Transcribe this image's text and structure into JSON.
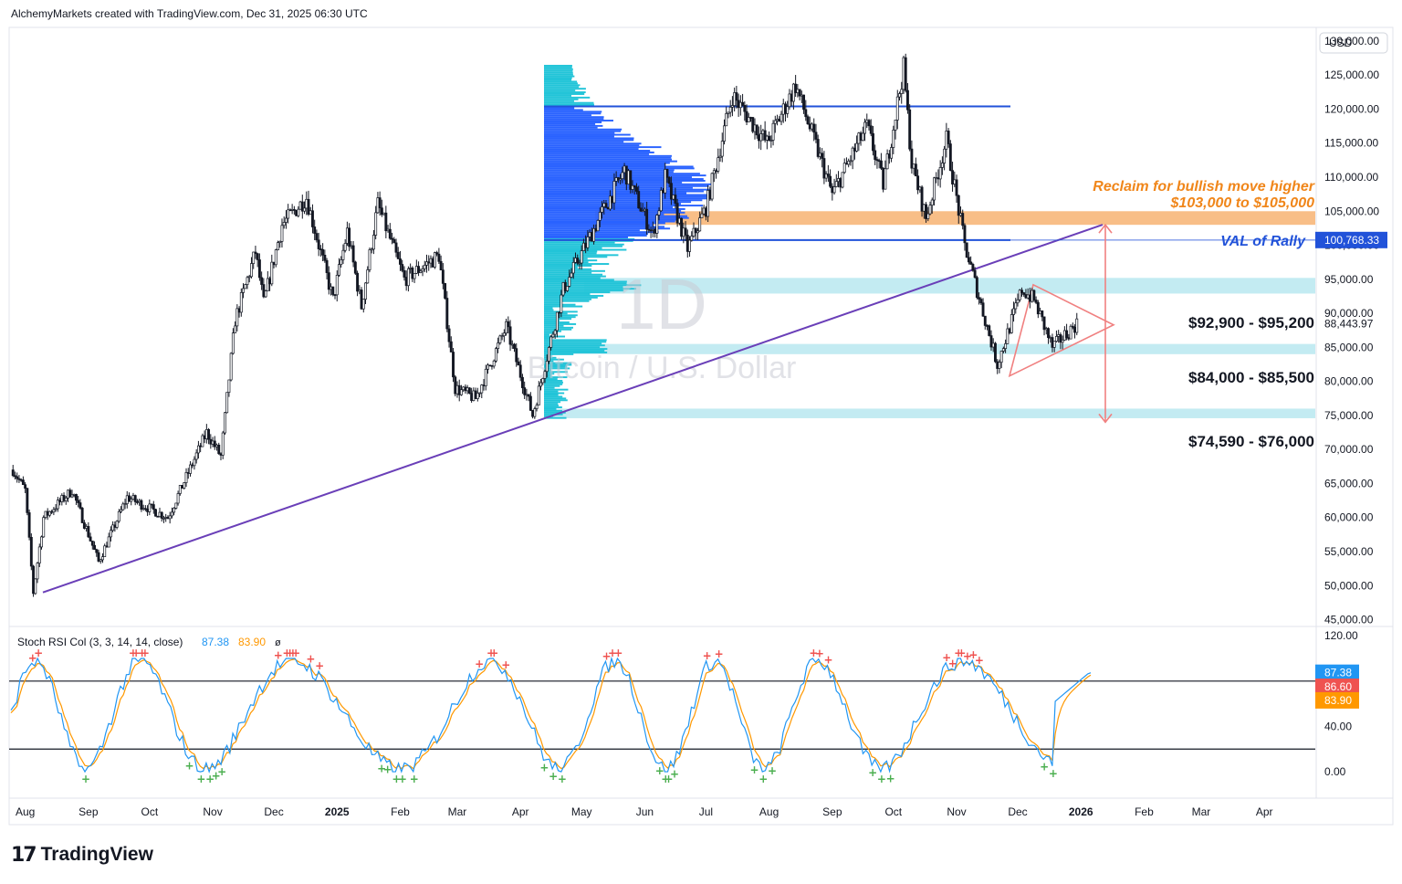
{
  "header": {
    "attribution": "AlchemyMarkets created with TradingView.com, Dec 31, 2025 06:30 UTC"
  },
  "watermark": {
    "symbol": "1D",
    "name": "Bitcoin / U.S. Dollar"
  },
  "footer": {
    "brand": "TradingView"
  },
  "colors": {
    "candle": "#131722",
    "trendline": "#6a3fb8",
    "vp_high": "#2962ff",
    "vp_low": "#22c4d8",
    "zone_cyan": "#b8e8f0",
    "zone_orange": "#f7b77a",
    "blue_line": "#2152d9",
    "triangle": "#f08080",
    "annotation_orange": "#f0861a",
    "stoch_k": "#2196f3",
    "stoch_d": "#ff9800"
  },
  "chart_data": [
    {
      "type": "candlestick",
      "title": "Bitcoin / U.S. Dollar",
      "interval": "1D",
      "currency": "USD",
      "x_ticks": [
        "Aug",
        "Sep",
        "Oct",
        "Nov",
        "Dec",
        "2025",
        "Feb",
        "Mar",
        "Apr",
        "May",
        "Jun",
        "Jul",
        "Aug",
        "Sep",
        "Oct",
        "Nov",
        "Dec",
        "2026",
        "Feb",
        "Mar",
        "Apr"
      ],
      "y_ticks": [
        "130,000.00",
        "125,000.00",
        "120,000.00",
        "115,000.00",
        "110,000.00",
        "105,000.00",
        "100,000.00",
        "95,000.00",
        "90,000.00",
        "85,000.00",
        "80,000.00",
        "75,000.00",
        "70,000.00",
        "65,000.00",
        "60,000.00",
        "55,000.00",
        "50,000.00",
        "45,000.00"
      ],
      "ylim": [
        44000,
        132000
      ],
      "price_path": [
        [
          "2024-07-26",
          67000
        ],
        [
          "2024-08-01",
          64000
        ],
        [
          "2024-08-05",
          49000
        ],
        [
          "2024-08-10",
          60000
        ],
        [
          "2024-08-24",
          64000
        ],
        [
          "2024-09-06",
          53500
        ],
        [
          "2024-09-20",
          63000
        ],
        [
          "2024-10-10",
          60000
        ],
        [
          "2024-10-29",
          72500
        ],
        [
          "2024-11-05",
          69000
        ],
        [
          "2024-11-12",
          89000
        ],
        [
          "2024-11-22",
          99000
        ],
        [
          "2024-11-26",
          91500
        ],
        [
          "2024-12-05",
          103000
        ],
        [
          "2024-12-17",
          107000
        ],
        [
          "2024-12-30",
          92000
        ],
        [
          "2025-01-06",
          102000
        ],
        [
          "2025-01-13",
          91000
        ],
        [
          "2025-01-21",
          106000
        ],
        [
          "2025-02-03",
          95000
        ],
        [
          "2025-02-20",
          98500
        ],
        [
          "2025-02-28",
          79000
        ],
        [
          "2025-03-10",
          77500
        ],
        [
          "2025-03-25",
          88000
        ],
        [
          "2025-04-07",
          75000
        ],
        [
          "2025-04-22",
          93500
        ],
        [
          "2025-05-08",
          103000
        ],
        [
          "2025-05-22",
          111000
        ],
        [
          "2025-06-05",
          101500
        ],
        [
          "2025-06-11",
          110000
        ],
        [
          "2025-06-22",
          99500
        ],
        [
          "2025-07-01",
          105500
        ],
        [
          "2025-07-14",
          122000
        ],
        [
          "2025-07-31",
          115000
        ],
        [
          "2025-08-14",
          123500
        ],
        [
          "2025-09-01",
          107500
        ],
        [
          "2025-09-18",
          117500
        ],
        [
          "2025-09-26",
          109000
        ],
        [
          "2025-10-06",
          126000
        ],
        [
          "2025-10-10",
          112000
        ],
        [
          "2025-10-17",
          104000
        ],
        [
          "2025-10-27",
          115500
        ],
        [
          "2025-11-05",
          100000
        ],
        [
          "2025-11-21",
          82500
        ],
        [
          "2025-12-03",
          93500
        ],
        [
          "2025-12-09",
          92000
        ],
        [
          "2025-12-18",
          85000
        ],
        [
          "2025-12-30",
          88500
        ]
      ],
      "last_price": "88,443.97",
      "val_of_rally": "100,768.33",
      "zones": [
        {
          "label": "$92,900 - $95,200",
          "low": 92900,
          "high": 95200
        },
        {
          "label": "$84,000 - $85,500",
          "low": 84000,
          "high": 85500
        },
        {
          "label": "$74,590 - $76,000",
          "low": 74590,
          "high": 76000
        },
        {
          "label": "Reclaim for bullish move higher",
          "low": 103000,
          "high": 105000
        }
      ],
      "annotations": [
        "VAL of Rally",
        "Reclaim for bullish move higher",
        "$103,000 to $105,000"
      ],
      "horizontal_lines": [
        120400,
        100768
      ]
    },
    {
      "type": "line",
      "title": "Stoch RSI Col (3, 3, 14, 14, close)",
      "series": [
        {
          "name": "K",
          "last": "87.38"
        },
        {
          "name": "D",
          "last": "83.90"
        }
      ],
      "badge_mid": "86.60",
      "ylim": [
        -8,
        125
      ],
      "y_ticks": [
        "120.00",
        "40.00",
        "0.00"
      ],
      "levels": [
        80,
        20
      ]
    }
  ]
}
